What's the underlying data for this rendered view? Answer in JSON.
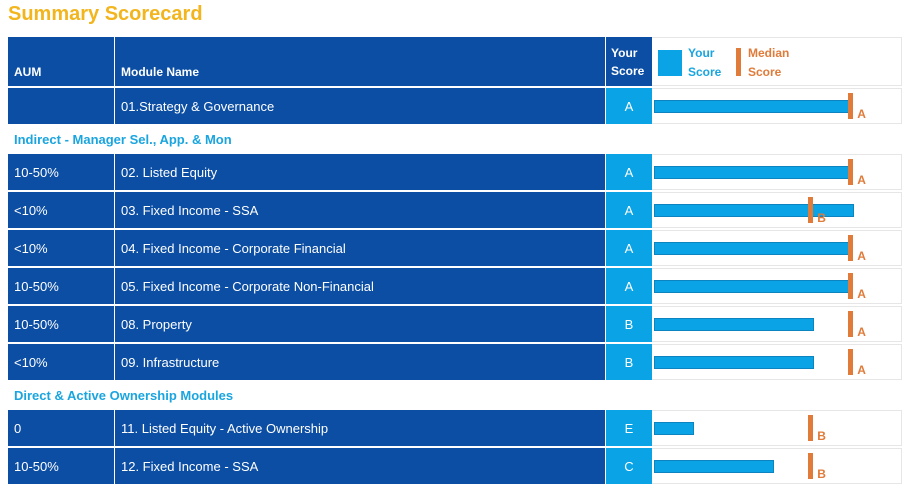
{
  "title": "Summary Scorecard",
  "header": {
    "aum": "AUM",
    "module": "Module Name",
    "score_line1": "Your",
    "score_line2": "Score",
    "legend_your_line1": "Your",
    "legend_your_line2": "Score",
    "legend_median_line1": "Median",
    "legend_median_line2": "Score"
  },
  "colors": {
    "title": "#f2b51d",
    "dark_blue": "#0c4ea3",
    "light_blue": "#0aa3e5",
    "median": "#e07b39",
    "section_text": "#1aa5df"
  },
  "chart_data": {
    "type": "bar",
    "orientation": "horizontal",
    "score_scale": [
      "E",
      "D",
      "C",
      "B",
      "A"
    ],
    "series": [
      {
        "name": "Your Score",
        "values": [
          "A",
          "A",
          "A",
          "A",
          "A",
          "B",
          "B",
          "E",
          "C"
        ]
      },
      {
        "name": "Median Score",
        "values": [
          "A",
          "A",
          "B",
          "A",
          "A",
          "A",
          "A",
          "B",
          "B"
        ]
      }
    ],
    "categories": [
      "01.Strategy & Governance",
      "02. Listed Equity",
      "03. Fixed Income - SSA",
      "04. Fixed Income - Corporate Financial",
      "05. Fixed Income - Corporate Non-Financial",
      "08. Property",
      "09. Infrastructure",
      "11. Listed Equity - Active Ownership",
      "12. Fixed Income - SSA"
    ]
  },
  "rows": [
    {
      "kind": "data",
      "aum": "",
      "module": "01.Strategy & Governance",
      "score": "A",
      "median": "A",
      "score_pct": 78,
      "median_pct": 78.5
    },
    {
      "kind": "section",
      "label": "Indirect - Manager Sel., App. & Mon"
    },
    {
      "kind": "data",
      "aum": "10-50%",
      "module": "02. Listed Equity",
      "score": "A",
      "median": "A",
      "score_pct": 78,
      "median_pct": 78.5
    },
    {
      "kind": "data",
      "aum": "<10%",
      "module": "03. Fixed Income - SSA",
      "score": "A",
      "median": "B",
      "score_pct": 80,
      "median_pct": 62.5
    },
    {
      "kind": "data",
      "aum": "<10%",
      "module": "04. Fixed Income - Corporate Financial",
      "score": "A",
      "median": "A",
      "score_pct": 78,
      "median_pct": 78.5
    },
    {
      "kind": "data",
      "aum": "10-50%",
      "module": "05. Fixed Income - Corporate Non-Financial",
      "score": "A",
      "median": "A",
      "score_pct": 78,
      "median_pct": 78.5
    },
    {
      "kind": "data",
      "aum": "10-50%",
      "module": "08. Property",
      "score": "B",
      "median": "A",
      "score_pct": 64,
      "median_pct": 78.5
    },
    {
      "kind": "data",
      "aum": "<10%",
      "module": "09. Infrastructure",
      "score": "B",
      "median": "A",
      "score_pct": 64,
      "median_pct": 78.5
    },
    {
      "kind": "section",
      "label": "Direct & Active Ownership Modules"
    },
    {
      "kind": "data",
      "aum": "0",
      "module": "11. Listed Equity - Active Ownership",
      "score": "E",
      "median": "B",
      "score_pct": 16,
      "median_pct": 62.5
    },
    {
      "kind": "data",
      "aum": "10-50%",
      "module": "12. Fixed Income - SSA",
      "score": "C",
      "median": "B",
      "score_pct": 48,
      "median_pct": 62.5
    }
  ]
}
